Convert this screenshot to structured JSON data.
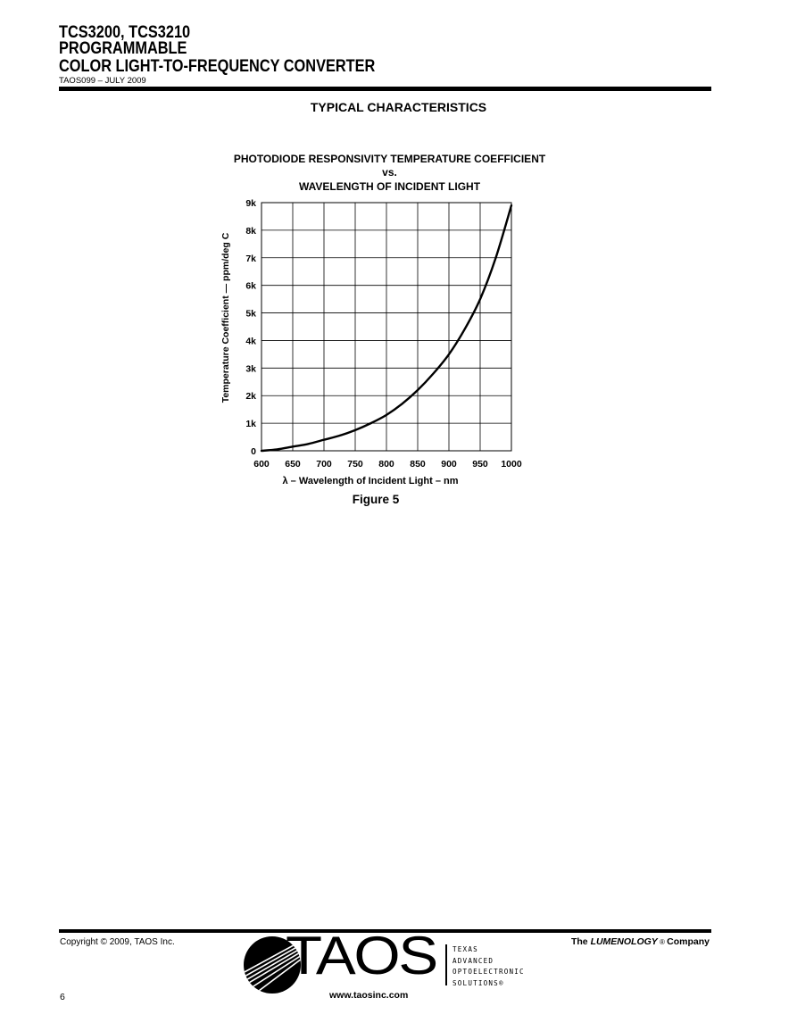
{
  "header": {
    "line1": "TCS3200, TCS3210",
    "line2": "PROGRAMMABLE",
    "line3": "COLOR LIGHT-TO-FREQUENCY CONVERTER",
    "doc_id": "TAOS099 – JULY 2009"
  },
  "section_title": "TYPICAL CHARACTERISTICS",
  "figure_label": "Figure 5",
  "chart_data": {
    "type": "line",
    "title_lines": [
      "PHOTODIODE RESPONSIVITY TEMPERATURE COEFFICIENT",
      "vs.",
      "WAVELENGTH OF INCIDENT LIGHT"
    ],
    "xlabel": "λ – Wavelength of Incident Light – nm",
    "ylabel": "Temperature Coefficient — ppm/deg C",
    "xlim": [
      600,
      1000
    ],
    "ylim": [
      0,
      9000
    ],
    "x_ticks": [
      600,
      650,
      700,
      750,
      800,
      850,
      900,
      950,
      1000
    ],
    "x_tick_labels": [
      "600",
      "650",
      "700",
      "750",
      "800",
      "850",
      "900",
      "950",
      "1000"
    ],
    "y_ticks": [
      0,
      1000,
      2000,
      3000,
      4000,
      5000,
      6000,
      7000,
      8000,
      9000
    ],
    "y_tick_labels": [
      "0",
      "1k",
      "2k",
      "3k",
      "4k",
      "5k",
      "6k",
      "7k",
      "8k",
      "9k"
    ],
    "grid": true,
    "series": [
      {
        "x": [
          600,
          625,
          650,
          675,
          700,
          725,
          750,
          775,
          800,
          825,
          850,
          875,
          900,
          925,
          950,
          975,
          1000
        ],
        "y": [
          0,
          50,
          150,
          250,
          400,
          550,
          750,
          1000,
          1300,
          1700,
          2200,
          2800,
          3500,
          4400,
          5500,
          7000,
          8900
        ]
      }
    ],
    "color": "#000000"
  },
  "footer": {
    "copyright": "Copyright © 2009, TAOS Inc.",
    "page_number": "6",
    "company_prefix": "The ",
    "company_brand": "LUMENOLOGY",
    "company_reg": " ® ",
    "company_suffix": "Company",
    "logo_word": "TAOS",
    "logo_lines": [
      "TEXAS",
      "ADVANCED",
      "OPTOELECTRONIC",
      "SOLUTIONS®"
    ],
    "url": "www.taosinc.com"
  }
}
